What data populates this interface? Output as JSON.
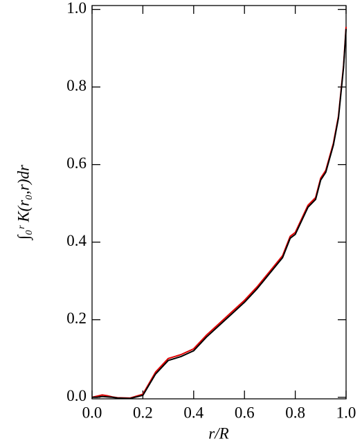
{
  "chart_data": {
    "type": "line",
    "x_label": "r/R",
    "y_label": "∫₀ʳ K(r₀,r)dr",
    "x": [
      0,
      0.02,
      0.04,
      0.06,
      0.08,
      0.1,
      0.15,
      0.2,
      0.25,
      0.3,
      0.35,
      0.4,
      0.45,
      0.5,
      0.55,
      0.6,
      0.65,
      0.7,
      0.75,
      0.78,
      0.8,
      0.85,
      0.88,
      0.9,
      0.92,
      0.95,
      0.97,
      0.99,
      1.0
    ],
    "series": [
      {
        "color": "#dd0000",
        "values": [
          0,
          0.003,
          0.006,
          0.004,
          0.001,
          -0.001,
          -0.002,
          0.008,
          0.065,
          0.1,
          0.11,
          0.125,
          0.16,
          0.19,
          0.22,
          0.25,
          0.285,
          0.325,
          0.365,
          0.415,
          0.425,
          0.495,
          0.515,
          0.565,
          0.585,
          0.655,
          0.725,
          0.855,
          0.955
        ]
      },
      {
        "color": "#000000",
        "values": [
          0,
          0,
          0.002,
          0.001,
          0,
          -0.002,
          -0.003,
          0.005,
          0.06,
          0.095,
          0.105,
          0.12,
          0.155,
          0.185,
          0.215,
          0.245,
          0.28,
          0.32,
          0.36,
          0.41,
          0.42,
          0.49,
          0.51,
          0.56,
          0.58,
          0.65,
          0.72,
          0.85,
          0.95
        ]
      }
    ],
    "xlim": [
      0,
      1
    ],
    "ylim": [
      -0.004,
      1.01
    ],
    "xticks": [
      {
        "value": 0,
        "label": "0.0"
      },
      0.2,
      0.4,
      0.6,
      0.8,
      {
        "value": 1,
        "label": "1.0"
      }
    ],
    "yticks": [
      {
        "value": 0,
        "label": "0.0"
      },
      0.2,
      0.4,
      0.6,
      0.8,
      {
        "value": 1,
        "label": "1.0"
      }
    ]
  }
}
